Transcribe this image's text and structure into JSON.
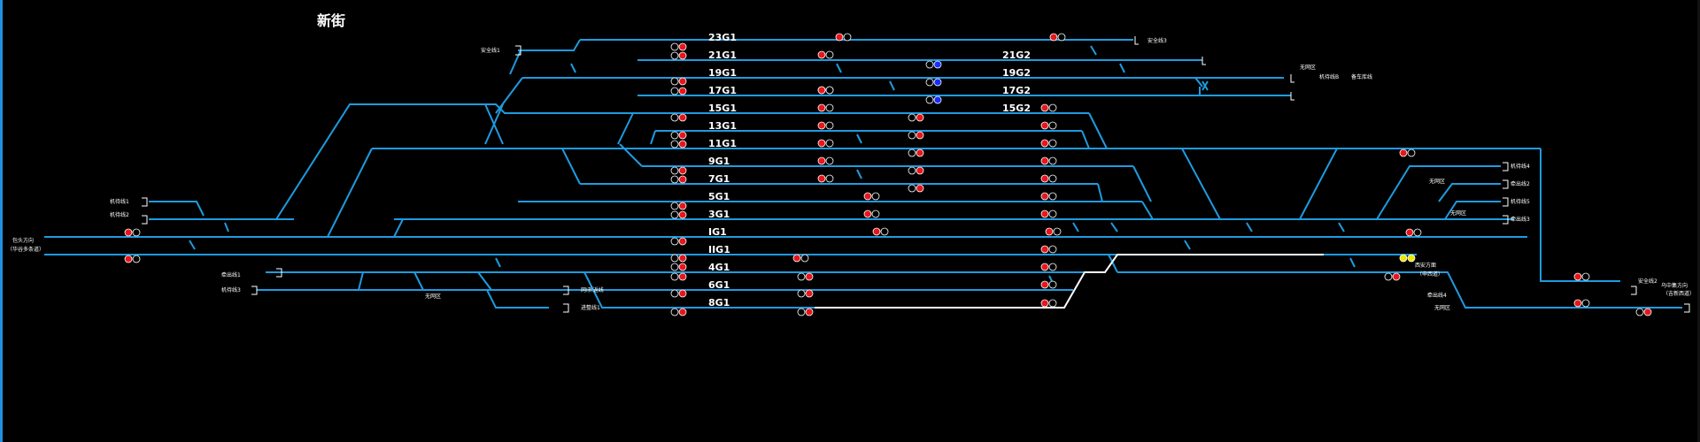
{
  "station": {
    "name": "新街"
  },
  "track_labels": [
    "23G1",
    "21G1",
    "19G1",
    "17G1",
    "15G1",
    "13G1",
    "11G1",
    "9G1",
    "7G1",
    "5G1",
    "3G1",
    "IG1",
    "IIG1",
    "4G1",
    "6G1",
    "8G1",
    "21G2",
    "19G2",
    "17G2",
    "15G2"
  ],
  "side_labels": {
    "safety_1": "安全线1",
    "safety_3": "安全线3",
    "safety_2": "安全线2",
    "departure_1": "机待线1",
    "departure_2": "机待线2",
    "departure_3": "机待线3",
    "departure_4": "机待线4",
    "departure_5": "机待线5",
    "departure_b": "机待线B",
    "standby": "备车库线",
    "lock_1": "无网区",
    "lock_2": "无网区",
    "lock_3": "无网区",
    "lock_4": "无网区",
    "lock_5": "无网区",
    "loco_1": "牵出线1",
    "loco_2": "牵出线2",
    "loco_3": "牵出线3",
    "loco_4": "牵出线4",
    "network": "网Ⅰ折返线",
    "depot": "进整线1",
    "west_dir": "包头方向",
    "west_dir_sub": "（华谷多条道）",
    "east_dir": "乌中集方向",
    "east_dir_sub": "（吉新西道）",
    "south_dir": "西安方面",
    "south_dir_sub": "（申西道）"
  },
  "colors": {
    "track": "#1e9be0",
    "route": "#ffffff",
    "signal_red": "#e8161b",
    "signal_blue": "#1a2bff",
    "signal_yellow": "#f2e600",
    "signal_off": "#000000"
  }
}
